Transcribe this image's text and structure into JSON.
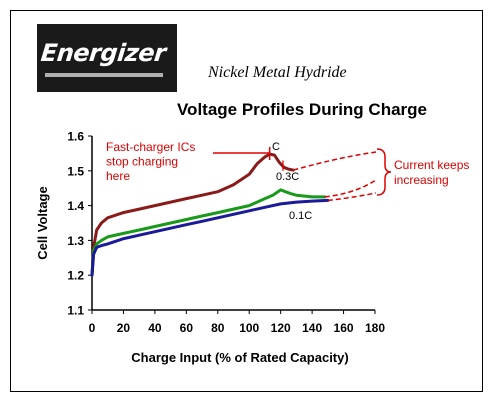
{
  "brand": {
    "logo_text": "Energizer"
  },
  "subtitle": "Nickel Metal Hydride",
  "colors": {
    "C": "#8b1a1a",
    "0.3C": "#1a9a1a",
    "0.1C": "#1a1a9a",
    "annotation": "#e00000"
  },
  "chart_data": {
    "type": "line",
    "title": "Voltage Profiles During Charge",
    "xlabel": "Charge Input (% of Rated Capacity)",
    "ylabel": "Cell Voltage",
    "xlim": [
      0,
      180
    ],
    "ylim": [
      1.1,
      1.6
    ],
    "xticks": [
      "0",
      "20",
      "40",
      "60",
      "80",
      "100",
      "120",
      "140",
      "160",
      "180"
    ],
    "yticks": [
      "1.1",
      "1.2",
      "1.3",
      "1.4",
      "1.5",
      "1.6"
    ],
    "grid": false,
    "series": [
      {
        "name": "C",
        "points": [
          [
            0,
            1.2
          ],
          [
            1,
            1.28
          ],
          [
            3,
            1.33
          ],
          [
            6,
            1.35
          ],
          [
            10,
            1.365
          ],
          [
            20,
            1.38
          ],
          [
            30,
            1.39
          ],
          [
            40,
            1.4
          ],
          [
            50,
            1.41
          ],
          [
            60,
            1.42
          ],
          [
            70,
            1.43
          ],
          [
            80,
            1.44
          ],
          [
            90,
            1.46
          ],
          [
            100,
            1.49
          ],
          [
            105,
            1.52
          ],
          [
            110,
            1.54
          ],
          [
            113,
            1.548
          ],
          [
            116,
            1.545
          ],
          [
            119,
            1.525
          ],
          [
            122,
            1.51
          ],
          [
            125,
            1.505
          ],
          [
            128,
            1.502
          ]
        ]
      },
      {
        "name": "0.3C",
        "points": [
          [
            0,
            1.2
          ],
          [
            1,
            1.27
          ],
          [
            3,
            1.29
          ],
          [
            6,
            1.3
          ],
          [
            10,
            1.31
          ],
          [
            20,
            1.32
          ],
          [
            30,
            1.33
          ],
          [
            40,
            1.34
          ],
          [
            50,
            1.35
          ],
          [
            60,
            1.36
          ],
          [
            70,
            1.37
          ],
          [
            80,
            1.38
          ],
          [
            90,
            1.39
          ],
          [
            100,
            1.4
          ],
          [
            110,
            1.42
          ],
          [
            115,
            1.43
          ],
          [
            120,
            1.445
          ],
          [
            123,
            1.44
          ],
          [
            126,
            1.435
          ],
          [
            130,
            1.43
          ],
          [
            140,
            1.425
          ],
          [
            148,
            1.425
          ]
        ]
      },
      {
        "name": "0.1C",
        "points": [
          [
            0,
            1.2
          ],
          [
            1,
            1.26
          ],
          [
            3,
            1.28
          ],
          [
            6,
            1.285
          ],
          [
            10,
            1.29
          ],
          [
            20,
            1.305
          ],
          [
            30,
            1.315
          ],
          [
            40,
            1.325
          ],
          [
            50,
            1.335
          ],
          [
            60,
            1.345
          ],
          [
            70,
            1.355
          ],
          [
            80,
            1.365
          ],
          [
            90,
            1.375
          ],
          [
            100,
            1.385
          ],
          [
            110,
            1.395
          ],
          [
            120,
            1.405
          ],
          [
            130,
            1.41
          ],
          [
            140,
            1.413
          ],
          [
            150,
            1.415
          ]
        ]
      }
    ],
    "annotations": [
      {
        "text": "Fast-charger ICs stop charging here",
        "lines": [
          "Fast-charger ICs",
          "stop charging",
          "here"
        ]
      },
      {
        "text": "Current keeps increasing",
        "lines": [
          "Current keeps",
          "increasing"
        ]
      }
    ],
    "curve_labels": [
      "C",
      "0.3C",
      "0.1C"
    ]
  }
}
